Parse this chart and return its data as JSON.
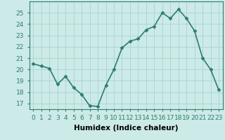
{
  "x": [
    0,
    1,
    2,
    3,
    4,
    5,
    6,
    7,
    8,
    9,
    10,
    11,
    12,
    13,
    14,
    15,
    16,
    17,
    18,
    19,
    20,
    21,
    22,
    23
  ],
  "y": [
    20.5,
    20.3,
    20.1,
    18.7,
    19.4,
    18.4,
    17.8,
    16.8,
    16.75,
    18.6,
    20.0,
    21.9,
    22.5,
    22.7,
    23.5,
    23.8,
    25.0,
    24.5,
    25.3,
    24.5,
    23.4,
    21.0,
    20.0,
    18.2
  ],
  "line_color": "#2e7d6e",
  "marker": "D",
  "marker_size": 2.5,
  "bg_color": "#cceae7",
  "grid_color": "#aad4d0",
  "xlabel": "Humidex (Indice chaleur)",
  "ylim": [
    16.5,
    26.0
  ],
  "xlim": [
    -0.5,
    23.5
  ],
  "yticks": [
    17,
    18,
    19,
    20,
    21,
    22,
    23,
    24,
    25
  ],
  "xticks": [
    0,
    1,
    2,
    3,
    4,
    5,
    6,
    7,
    8,
    9,
    10,
    11,
    12,
    13,
    14,
    15,
    16,
    17,
    18,
    19,
    20,
    21,
    22,
    23
  ],
  "xlabel_fontsize": 7.5,
  "tick_fontsize": 6.5,
  "linewidth": 1.2,
  "spine_color": "#2e7d6e"
}
